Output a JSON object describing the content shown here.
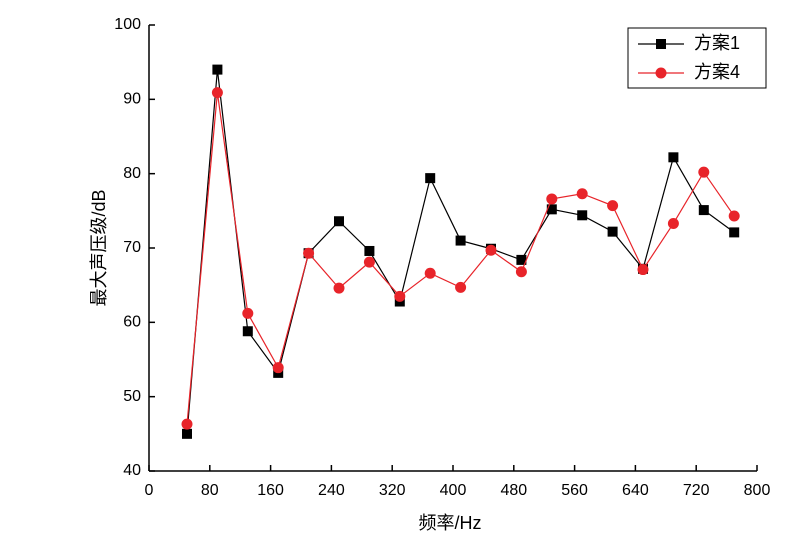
{
  "chart_data": {
    "type": "line",
    "x_label": "频率/Hz",
    "y_label": "最大声压级/dB",
    "x": [
      50,
      90,
      130,
      170,
      210,
      250,
      290,
      330,
      370,
      410,
      450,
      490,
      530,
      570,
      610,
      650,
      690,
      730,
      770
    ],
    "series": [
      {
        "name": "方案1",
        "color": "#000000",
        "marker": "square",
        "values": [
          45,
          94,
          58.8,
          53.2,
          69.3,
          73.6,
          69.6,
          62.8,
          79.4,
          71,
          69.9,
          68.4,
          75.2,
          74.4,
          72.2,
          67.2,
          82.2,
          75.1,
          72.1
        ]
      },
      {
        "name": "方案4",
        "color": "#e8242a",
        "marker": "circle",
        "values": [
          46.3,
          90.9,
          61.2,
          53.9,
          69.3,
          64.6,
          68.1,
          63.5,
          66.6,
          64.7,
          69.7,
          66.8,
          76.6,
          77.3,
          75.7,
          67.1,
          73.3,
          80.2,
          74.3
        ]
      }
    ],
    "xlim": [
      0,
      800
    ],
    "xticks": [
      0,
      80,
      160,
      240,
      320,
      400,
      480,
      560,
      640,
      720,
      800
    ],
    "ylim": [
      40,
      100
    ],
    "yticks": [
      40,
      50,
      60,
      70,
      80,
      90,
      100
    ],
    "legend": "top-right"
  }
}
